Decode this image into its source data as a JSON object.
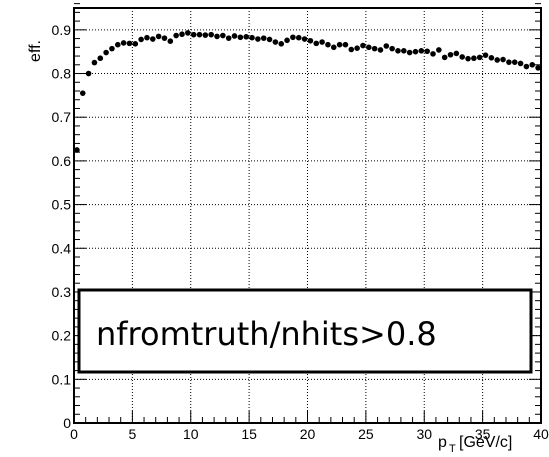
{
  "chart_data": {
    "type": "scatter",
    "xlabel": "p",
    "xlabel_sub": "T",
    "xlabel_unit": "[GeV/c]",
    "ylabel": "eff.",
    "xlim": [
      0,
      40
    ],
    "ylim": [
      0,
      0.95
    ],
    "grid": true,
    "x_ticks": [
      "0",
      "5",
      "10",
      "15",
      "20",
      "25",
      "30",
      "35",
      "40"
    ],
    "y_ticks": [
      "0",
      "0.1",
      "0.2",
      "0.3",
      "0.4",
      "0.5",
      "0.6",
      "0.7",
      "0.8",
      "0.9"
    ],
    "annotation": "nfromtruth/nhits>0.8",
    "series": [
      {
        "x": [
          0.25,
          0.75,
          1.25,
          1.75,
          2.25,
          2.75,
          3.25,
          3.75,
          4.25,
          4.75,
          5.25,
          5.75,
          6.25,
          6.75,
          7.25,
          7.75,
          8.25,
          8.75,
          9.25,
          9.75,
          10.25,
          10.75,
          11.25,
          11.75,
          12.25,
          12.75,
          13.25,
          13.75,
          14.25,
          14.75,
          15.25,
          15.75,
          16.25,
          16.75,
          17.25,
          17.75,
          18.25,
          18.75,
          19.25,
          19.75,
          20.25,
          20.75,
          21.25,
          21.75,
          22.25,
          22.75,
          23.25,
          23.75,
          24.25,
          24.75,
          25.25,
          25.75,
          26.25,
          26.75,
          27.25,
          27.75,
          28.25,
          28.75,
          29.25,
          29.75,
          30.25,
          30.75,
          31.25,
          31.75,
          32.25,
          32.75,
          33.25,
          33.75,
          34.25,
          34.75,
          35.25,
          35.75,
          36.25,
          36.75,
          37.25,
          37.75,
          38.25,
          38.75,
          39.25,
          39.75
        ],
        "y": [
          0.625,
          0.755,
          0.8,
          0.825,
          0.835,
          0.848,
          0.857,
          0.866,
          0.87,
          0.869,
          0.868,
          0.878,
          0.882,
          0.879,
          0.885,
          0.881,
          0.874,
          0.887,
          0.89,
          0.893,
          0.889,
          0.889,
          0.888,
          0.889,
          0.885,
          0.887,
          0.881,
          0.886,
          0.883,
          0.884,
          0.882,
          0.879,
          0.881,
          0.878,
          0.872,
          0.868,
          0.876,
          0.883,
          0.882,
          0.879,
          0.875,
          0.869,
          0.872,
          0.866,
          0.86,
          0.866,
          0.866,
          0.855,
          0.858,
          0.864,
          0.86,
          0.857,
          0.854,
          0.863,
          0.857,
          0.852,
          0.852,
          0.848,
          0.85,
          0.852,
          0.851,
          0.845,
          0.854,
          0.837,
          0.843,
          0.846,
          0.838,
          0.834,
          0.835,
          0.837,
          0.842,
          0.836,
          0.831,
          0.832,
          0.826,
          0.826,
          0.823,
          0.816,
          0.82,
          0.813
        ]
      }
    ]
  }
}
